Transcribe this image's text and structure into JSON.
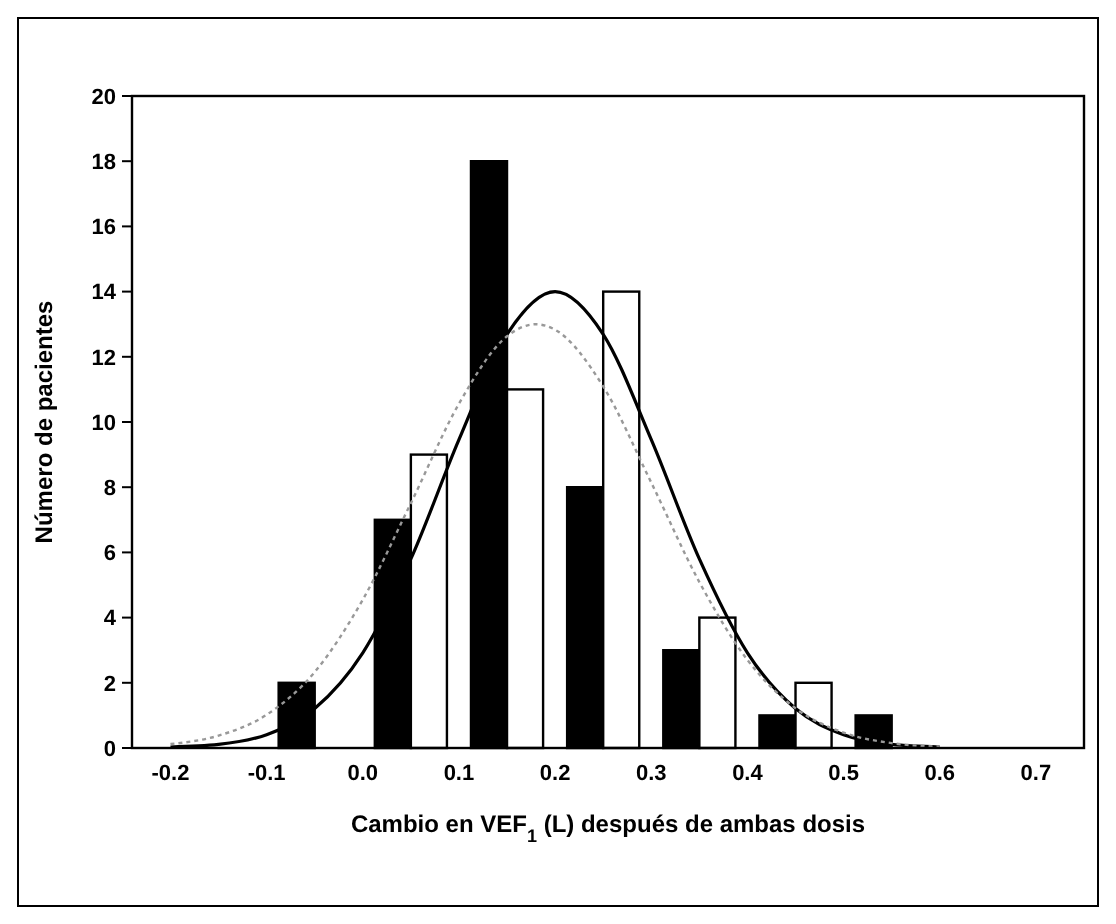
{
  "chart_data": {
    "type": "bar",
    "xlabel": "Cambio en VEF$_{1}$ (L) después de ambas dosis",
    "ylabel": "Número de pacientes",
    "xlim": [
      -0.24,
      0.75
    ],
    "xticks": [
      {
        "value": -0.2,
        "label": "-0.2"
      },
      {
        "value": -0.1,
        "label": "-0.1"
      },
      {
        "value": 0,
        "label": "0.0"
      },
      {
        "value": 0.1,
        "label": "0.1"
      },
      {
        "value": 0.2,
        "label": "0.2"
      },
      {
        "value": 0.3,
        "label": "0.3"
      },
      {
        "value": 0.4,
        "label": "0.4"
      },
      {
        "value": 0.5,
        "label": "0.5"
      },
      {
        "value": 0.6,
        "label": "0.6"
      },
      {
        "value": 0.7,
        "label": "0.7"
      }
    ],
    "ylim": [
      0,
      20
    ],
    "yticks": [
      0,
      2,
      4,
      6,
      8,
      10,
      12,
      14,
      16,
      18,
      20
    ],
    "series": [
      {
        "color": "#000000",
        "x": [
          -0.05,
          0.05,
          0.15,
          0.25,
          0.35,
          0.45,
          0.55
        ],
        "values": [
          2,
          7,
          18,
          8,
          3,
          1,
          1
        ]
      },
      {
        "color": "#ffffff",
        "x": [
          -0.05,
          0.05,
          0.15,
          0.25,
          0.35,
          0.45,
          0.55
        ],
        "values": [
          0,
          9,
          11,
          14,
          4,
          2,
          0
        ]
      },
      {
        "type": "line",
        "color": "#000000",
        "line_style": "solid",
        "x": [
          -0.2,
          -0.15,
          -0.1,
          -0.05,
          0,
          0.05,
          0.1,
          0.15,
          0.2,
          0.25,
          0.3,
          0.35,
          0.4,
          0.45,
          0.5,
          0.55,
          0.6
        ],
        "values": [
          0.03,
          0.11,
          0.41,
          1.21,
          2.92,
          5.8,
          9.46,
          12.69,
          14,
          12.69,
          9.46,
          5.8,
          2.92,
          1.21,
          0.41,
          0.11,
          0.03
        ]
      },
      {
        "type": "line",
        "color": "#999999",
        "line_style": "dotted",
        "x": [
          -0.2,
          -0.15,
          -0.1,
          -0.05,
          0,
          0.05,
          0.1,
          0.15,
          0.18,
          0.2,
          0.25,
          0.3,
          0.35,
          0.4,
          0.45,
          0.5,
          0.55,
          0.6
        ],
        "values": [
          0.12,
          0.38,
          1.02,
          2.33,
          4.55,
          7.51,
          10.56,
          12.63,
          13,
          12.83,
          11.09,
          8.14,
          5.09,
          2.7,
          1.22,
          0.47,
          0.15,
          0.04
        ]
      }
    ]
  }
}
